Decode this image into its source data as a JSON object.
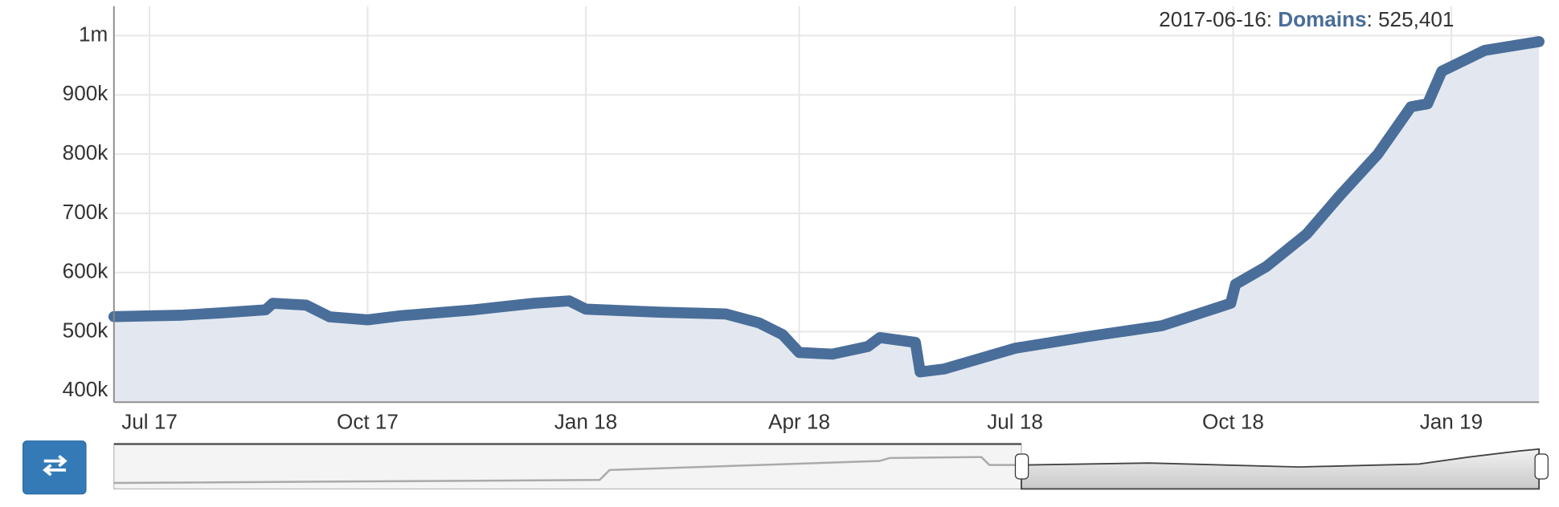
{
  "chart_data": {
    "type": "line",
    "x": [
      "2017-06-16",
      "2017-07-15",
      "2017-08-01",
      "2017-08-19",
      "2017-08-22",
      "2017-09-05",
      "2017-09-15",
      "2017-10-01",
      "2017-10-15",
      "2017-11-15",
      "2017-12-10",
      "2017-12-25",
      "2018-01-01",
      "2018-02-01",
      "2018-03-01",
      "2018-03-15",
      "2018-03-25",
      "2018-04-01",
      "2018-04-15",
      "2018-04-30",
      "2018-05-05",
      "2018-05-20",
      "2018-05-22",
      "2018-06-01",
      "2018-07-01",
      "2018-08-01",
      "2018-09-01",
      "2018-09-30",
      "2018-10-02",
      "2018-10-15",
      "2018-11-01",
      "2018-11-15",
      "2018-12-01",
      "2018-12-15",
      "2018-12-22",
      "2018-12-28",
      "2019-01-15",
      "2019-02-07"
    ],
    "series": [
      {
        "name": "Domains",
        "color": "#4a6e9a",
        "values": [
          525401,
          528000,
          532000,
          537000,
          548000,
          545000,
          525000,
          520000,
          527000,
          537000,
          548000,
          552000,
          538000,
          533000,
          530000,
          515000,
          495000,
          465000,
          462000,
          475000,
          490000,
          482000,
          432000,
          437000,
          472000,
          492000,
          510000,
          548000,
          580000,
          610000,
          665000,
          730000,
          800000,
          880000,
          885000,
          940000,
          975000,
          990000
        ]
      }
    ],
    "legend_value_label": "525,401",
    "legend_separator": ": ",
    "xlim": [
      "2017-06-16",
      "2019-02-07"
    ],
    "xticks": [
      {
        "value": "2017-07-01",
        "label": "Jul 17"
      },
      {
        "value": "2017-10-01",
        "label": "Oct 17"
      },
      {
        "value": "2018-01-01",
        "label": "Jan 18"
      },
      {
        "value": "2018-04-01",
        "label": "Apr 18"
      },
      {
        "value": "2018-07-01",
        "label": "Jul 18"
      },
      {
        "value": "2018-10-01",
        "label": "Oct 18"
      },
      {
        "value": "2019-01-01",
        "label": "Jan 19"
      }
    ],
    "ylim": [
      381000,
      1050000
    ],
    "yticks": [
      {
        "value": 400000,
        "label": "400k"
      },
      {
        "value": 500000,
        "label": "500k"
      },
      {
        "value": 600000,
        "label": "600k"
      },
      {
        "value": 700000,
        "label": "700k"
      },
      {
        "value": 800000,
        "label": "800k"
      },
      {
        "value": 900000,
        "label": "900k"
      },
      {
        "value": 1000000,
        "label": "1m"
      }
    ],
    "grid": true,
    "fill": "#e3e8f0"
  }
}
